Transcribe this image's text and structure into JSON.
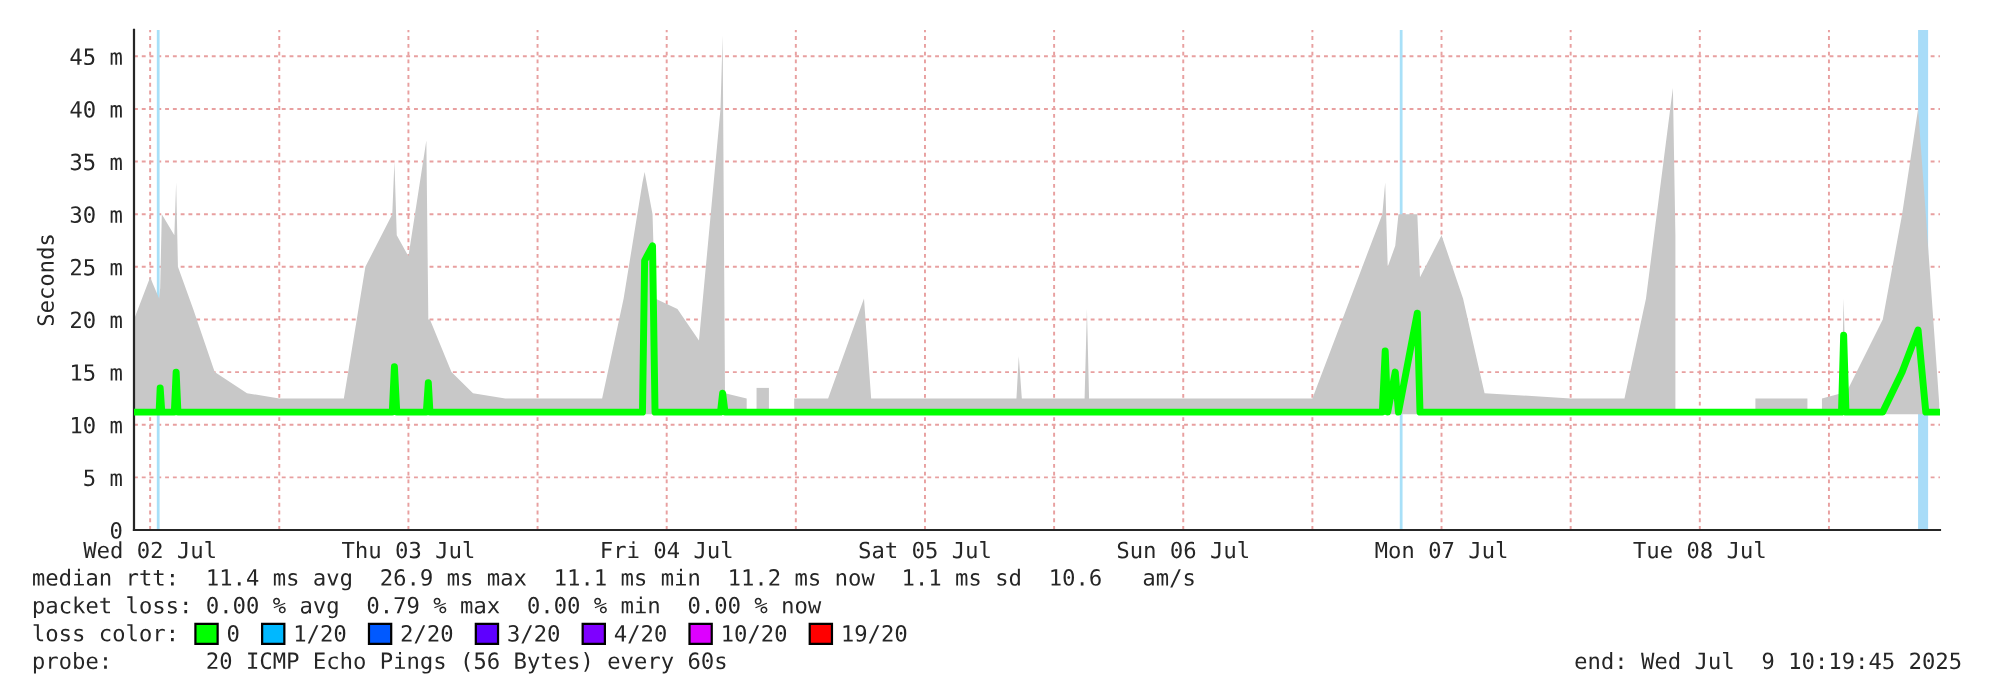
{
  "chart_data": {
    "type": "line",
    "ylabel": "Seconds",
    "xlim": [
      "2025-07-02T10:30",
      "2025-07-09T10:19"
    ],
    "xticks": [
      {
        "value": "2025-07-02T12:00",
        "label": "Wed 02 Jul"
      },
      {
        "value": "2025-07-03T00:00",
        "label": null
      },
      {
        "value": "2025-07-03T12:00",
        "label": "Thu 03 Jul"
      },
      {
        "value": "2025-07-04T00:00",
        "label": null
      },
      {
        "value": "2025-07-04T12:00",
        "label": "Fri 04 Jul"
      },
      {
        "value": "2025-07-05T00:00",
        "label": null
      },
      {
        "value": "2025-07-05T12:00",
        "label": "Sat 05 Jul"
      },
      {
        "value": "2025-07-06T00:00",
        "label": null
      },
      {
        "value": "2025-07-06T12:00",
        "label": "Sun 06 Jul"
      },
      {
        "value": "2025-07-07T00:00",
        "label": null
      },
      {
        "value": "2025-07-07T12:00",
        "label": "Mon 07 Jul"
      },
      {
        "value": "2025-07-08T00:00",
        "label": null
      },
      {
        "value": "2025-07-08T12:00",
        "label": "Tue 08 Jul"
      },
      {
        "value": "2025-07-09T00:00",
        "label": null
      }
    ],
    "ylim": [
      0,
      47.5
    ],
    "yticks": [
      0,
      {
        "value": 5,
        "label": "5 m"
      },
      {
        "value": 10,
        "label": "10 m"
      },
      {
        "value": 15,
        "label": "15 m"
      },
      {
        "value": 20,
        "label": "20 m"
      },
      {
        "value": 25,
        "label": "25 m"
      },
      {
        "value": 30,
        "label": "30 m"
      },
      {
        "value": 35,
        "label": "35 m"
      },
      {
        "value": 40,
        "label": "40 m"
      },
      {
        "value": 45,
        "label": "45 m"
      }
    ],
    "grid": true,
    "legend": "bottom",
    "marker": "none",
    "line_style": "solid",
    "series": [
      {
        "name": "0",
        "color": "#00ff00",
        "x": [
          "2025-07-02T10:30",
          "2025-07-02T12:00",
          "2025-07-02T12:50",
          "2025-07-02T12:56",
          "2025-07-02T13:05",
          "2025-07-02T14:15",
          "2025-07-02T14:25",
          "2025-07-02T14:35",
          "2025-07-02T16:00",
          "2025-07-02T18:00",
          "2025-07-02T21:00",
          "2025-07-03T00:00",
          "2025-07-03T03:00",
          "2025-07-03T06:00",
          "2025-07-03T08:00",
          "2025-07-03T10:30",
          "2025-07-03T10:42",
          "2025-07-03T10:55",
          "2025-07-03T12:00",
          "2025-07-03T13:40",
          "2025-07-03T13:51",
          "2025-07-03T14:00",
          "2025-07-03T16:00",
          "2025-07-03T18:00",
          "2025-07-03T21:00",
          "2025-07-04T00:00",
          "2025-07-04T03:00",
          "2025-07-04T06:00",
          "2025-07-04T08:00",
          "2025-07-04T09:45",
          "2025-07-04T09:57",
          "2025-07-04T10:41",
          "2025-07-04T10:55",
          "2025-07-04T13:00",
          "2025-07-04T15:00",
          "2025-07-04T17:00",
          "2025-07-04T17:12",
          "2025-07-04T17:25",
          "2025-07-04T19:26",
          "2025-07-04T19:30",
          "2025-07-04T20:21",
          "2025-07-04T21:30",
          "2025-07-04T21:50",
          "2025-07-04T23:51",
          "2025-07-05T03:00",
          "2025-07-05T06:20",
          "2025-07-05T07:00",
          "2025-07-05T12:00",
          "2025-07-05T20:30",
          "2025-07-05T20:43",
          "2025-07-05T21:00",
          "2025-07-06T00:00",
          "2025-07-06T02:50",
          "2025-07-06T03:03",
          "2025-07-06T03:15",
          "2025-07-06T12:00",
          "2025-07-07T00:00",
          "2025-07-07T06:30",
          "2025-07-07T06:46",
          "2025-07-07T07:00",
          "2025-07-07T07:42",
          "2025-07-07T08:00",
          "2025-07-07T09:45",
          "2025-07-07T10:00",
          "2025-07-07T12:00",
          "2025-07-07T14:00",
          "2025-07-07T16:00",
          "2025-07-08T00:00",
          "2025-07-08T05:00",
          "2025-07-08T07:00",
          "2025-07-08T09:30",
          "2025-07-08T09:44",
          "2025-07-08T09:50",
          "2025-07-08T17:10",
          "2025-07-08T22:00",
          "2025-07-08T22:05",
          "2025-07-08T23:21",
          "2025-07-09T01:10",
          "2025-07-09T01:22",
          "2025-07-09T01:35",
          "2025-07-09T05:00",
          "2025-07-09T06:48",
          "2025-07-09T08:17",
          "2025-07-09T09:00",
          "2025-07-09T10:15"
        ],
        "values": [
          11.2,
          11.2,
          11.2,
          13.5,
          11.2,
          11.2,
          15,
          11.2,
          11.2,
          11.2,
          11.2,
          11.2,
          11.2,
          11.2,
          11.2,
          11.2,
          15.5,
          11.2,
          11.2,
          11.2,
          14,
          11.2,
          11.2,
          11.2,
          11.2,
          11.2,
          11.2,
          11.2,
          11.2,
          11.2,
          25.6,
          27,
          11.2,
          11.2,
          11.2,
          11.2,
          13,
          11.2,
          11.2,
          null,
          11.2,
          11.2,
          null,
          11.2,
          11.2,
          11.2,
          11.2,
          11.2,
          11.2,
          11.2,
          11.2,
          11.2,
          11.2,
          11.2,
          11.2,
          11.2,
          11.2,
          11.2,
          17,
          11.2,
          15,
          11.2,
          20.6,
          11.2,
          11.2,
          11.2,
          11.2,
          11.2,
          11.2,
          11.2,
          11.2,
          11.2,
          null,
          11.2,
          11.2,
          null,
          11.2,
          11.2,
          18.5,
          11.2,
          11.2,
          15,
          19,
          11.2,
          11.2
        ],
        "lower": [
          11,
          11,
          11,
          11,
          11,
          11,
          11,
          11,
          11,
          11,
          11,
          11,
          11,
          11,
          11,
          11,
          11,
          11,
          11,
          11,
          11,
          11,
          11,
          11,
          11,
          11,
          11,
          11,
          11,
          11,
          11,
          11,
          11,
          11,
          11,
          11,
          11,
          11,
          11,
          null,
          11,
          11,
          null,
          11,
          11,
          11,
          11,
          11,
          11,
          11,
          11,
          11,
          11,
          11,
          11,
          11,
          11,
          11,
          11,
          11,
          11,
          11,
          11,
          11,
          11,
          11,
          11,
          11,
          11,
          11,
          11,
          11,
          null,
          11,
          11,
          null,
          11,
          11,
          11,
          11,
          11,
          11,
          11,
          11,
          11
        ],
        "upper": [
          20,
          24,
          22,
          23,
          30,
          28,
          33,
          25,
          21,
          15,
          13,
          12.5,
          12.5,
          12.5,
          25,
          30,
          35,
          28,
          26,
          37,
          20,
          20,
          15,
          13,
          12.5,
          12.5,
          12.5,
          12.5,
          22,
          33,
          34,
          30,
          22,
          21,
          18,
          40,
          47,
          13,
          12.5,
          null,
          13.5,
          13.5,
          null,
          12.5,
          12.5,
          22,
          12.5,
          12.5,
          12.5,
          16.5,
          12.5,
          12.5,
          12.5,
          21,
          12.5,
          12.5,
          12.5,
          30,
          33,
          25,
          27,
          30,
          30,
          24,
          28,
          22,
          13,
          12.5,
          12.5,
          22,
          42,
          28,
          null,
          12.5,
          12.5,
          null,
          12.5,
          13,
          22,
          13,
          20,
          30,
          40,
          30,
          12
        ]
      },
      {
        "name": "1/20",
        "color": "#00b8ff"
      },
      {
        "name": "2/20",
        "color": "#0059ff"
      },
      {
        "name": "3/20",
        "color": "#5e00ff"
      },
      {
        "name": "4/20",
        "color": "#7e00ff"
      },
      {
        "name": "10/20",
        "color": "#dd00ff"
      },
      {
        "name": "19/20",
        "color": "#ff0000"
      }
    ],
    "ref_lines": [
      {
        "axis": "x",
        "value": "2025-07-02T12:45",
        "color": "#a8e0f8"
      },
      {
        "axis": "x",
        "value": "2025-07-07T08:15",
        "color": "#a8e0f8"
      }
    ],
    "bands": [
      {
        "axis": "x",
        "from": "2025-07-09T08:17",
        "to": "2025-07-09T09:13",
        "color": "#a8dcf8"
      }
    ],
    "annotations": [
      "median rtt:  11.4 ms avg  26.9 ms max  11.1 ms min  11.2 ms now  1.1 ms sd  10.6   am/s",
      "packet loss: 0.00 % avg  0.79 % max  0.00 % min  0.00 % now",
      "loss color:",
      "probe:       20 ICMP Echo Pings (56 Bytes) every 60s",
      "end: Wed Jul  9 10:19:45 2025"
    ]
  }
}
